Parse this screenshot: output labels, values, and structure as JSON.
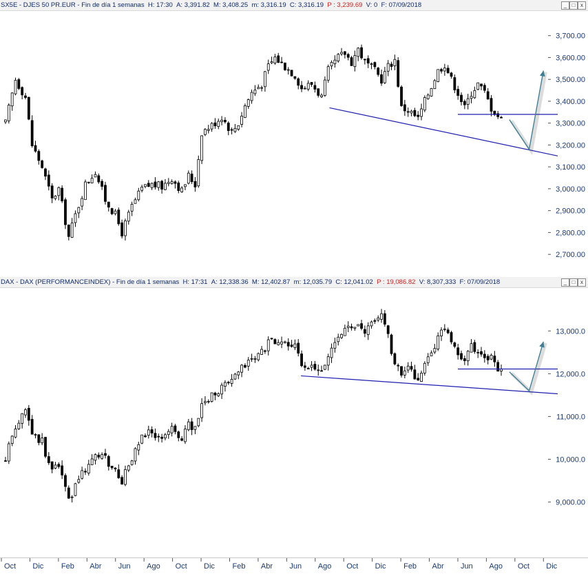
{
  "panels": [
    {
      "header": {
        "symbol": "SX5E",
        "name": "DJES 50 PR.EUR",
        "period": "Fin de día 1 semanas",
        "time_label": "H:",
        "time": "17:30",
        "open_label": "A:",
        "open": "3,391.82",
        "high_label": "M:",
        "high": "3,408.25",
        "low_label": "m:",
        "low": "3,316.19",
        "close_label": "C:",
        "close": "3,316.19",
        "p_label": "P :",
        "p": "3,239.69",
        "vol_label": "V:",
        "vol": "0",
        "date_label": "F:",
        "date": "07/09/2018"
      }
    },
    {
      "header": {
        "symbol": "DAX",
        "name": "DAX (PERFORMANCEINDEX)",
        "period": "Fin de día 1 semanas",
        "time_label": "H:",
        "time": "17:31",
        "open_label": "A:",
        "open": "12,338.36",
        "high_label": "M:",
        "high": "12,402.87",
        "low_label": "m:",
        "low": "12,035.79",
        "close_label": "C:",
        "close": "12,041.02",
        "p_label": "P :",
        "p": "19,086.82",
        "vol_label": "V:",
        "vol": "8,307,333",
        "date_label": "F:",
        "date": "07/09/2018"
      }
    }
  ],
  "window_buttons": [
    "_",
    "□",
    "x"
  ],
  "colors": {
    "header_text": "#102a6b",
    "header_red": "#d21e1e",
    "trendline": "#1f1fb0",
    "projection": "#3e7f93",
    "candle": "#000000"
  },
  "chart_data": [
    {
      "type": "candlestick",
      "title": "SX5E - DJES 50 PR.EUR",
      "x_ticks": [
        "Oct",
        "Dic",
        "Feb",
        "Abr",
        "Jun",
        "Ago",
        "Oct",
        "Dic",
        "Feb",
        "Abr",
        "Jun",
        "Ago",
        "Oct",
        "Dic",
        "Feb",
        "Abr",
        "Jun",
        "Ago",
        "Oct",
        "Dic"
      ],
      "x_range": [
        "2015-09",
        "2018-12"
      ],
      "y_ticks": [
        "2,700.00",
        "2,800.00",
        "2,900.00",
        "3,000.00",
        "3,100.00",
        "3,200.00",
        "3,300.00",
        "3,400.00",
        "3,500.00",
        "3,600.00",
        "3,700.00"
      ],
      "ylim": [
        2650,
        3740
      ],
      "close_anchors": [
        [
          0,
          3300
        ],
        [
          3,
          3500
        ],
        [
          6,
          3420
        ],
        [
          8,
          3200
        ],
        [
          11,
          3100
        ],
        [
          14,
          2950
        ],
        [
          16,
          3000
        ],
        [
          19,
          2780
        ],
        [
          21,
          2880
        ],
        [
          24,
          3020
        ],
        [
          27,
          3080
        ],
        [
          30,
          2950
        ],
        [
          33,
          2880
        ],
        [
          35,
          2800
        ],
        [
          38,
          2920
        ],
        [
          41,
          3000
        ],
        [
          44,
          3020
        ],
        [
          47,
          3010
        ],
        [
          50,
          3050
        ],
        [
          53,
          2990
        ],
        [
          55,
          3060
        ],
        [
          57,
          3020
        ],
        [
          59,
          3260
        ],
        [
          62,
          3290
        ],
        [
          65,
          3330
        ],
        [
          68,
          3260
        ],
        [
          70,
          3300
        ],
        [
          72,
          3380
        ],
        [
          74,
          3440
        ],
        [
          77,
          3480
        ],
        [
          79,
          3560
        ],
        [
          81,
          3600
        ],
        [
          84,
          3560
        ],
        [
          87,
          3520
        ],
        [
          89,
          3460
        ],
        [
          92,
          3480
        ],
        [
          95,
          3420
        ],
        [
          97,
          3540
        ],
        [
          100,
          3600
        ],
        [
          102,
          3620
        ],
        [
          104,
          3580
        ],
        [
          106,
          3640
        ],
        [
          108,
          3580
        ],
        [
          111,
          3540
        ],
        [
          113,
          3500
        ],
        [
          115,
          3560
        ],
        [
          117,
          3590
        ],
        [
          119,
          3370
        ],
        [
          121,
          3360
        ],
        [
          124,
          3320
        ],
        [
          126,
          3400
        ],
        [
          128,
          3470
        ],
        [
          130,
          3540
        ],
        [
          132,
          3570
        ],
        [
          134,
          3500
        ],
        [
          136,
          3440
        ],
        [
          138,
          3370
        ],
        [
          140,
          3440
        ],
        [
          142,
          3480
        ],
        [
          144,
          3440
        ],
        [
          146,
          3370
        ],
        [
          149,
          3316
        ]
      ],
      "trendline": {
        "from": [
          "2017-08",
          3370
        ],
        "to": [
          "2018-12",
          3150
        ]
      },
      "support_line": {
        "value": 3340,
        "from": "2018-05",
        "to": "2018-12"
      },
      "projection": [
        [
          "2018-09",
          3316
        ],
        [
          "2018-10",
          3180
        ],
        [
          "2018-11",
          3540
        ]
      ]
    },
    {
      "type": "candlestick",
      "title": "DAX - DAX (PERFORMANCEINDEX)",
      "x_ticks": [
        "Oct",
        "Dic",
        "Feb",
        "Abr",
        "Jun",
        "Ago",
        "Oct",
        "Dic",
        "Feb",
        "Abr",
        "Jun",
        "Ago",
        "Oct",
        "Dic",
        "Feb",
        "Abr",
        "Jun",
        "Ago",
        "Oct",
        "Dic"
      ],
      "x_range": [
        "2015-09",
        "2018-12"
      ],
      "y_ticks": [
        "9,000.00",
        "10,000.0",
        "11,000.0",
        "12,000.0",
        "13,000.0"
      ],
      "ylim": [
        8300,
        14100
      ],
      "close_anchors": [
        [
          0,
          10000
        ],
        [
          3,
          10800
        ],
        [
          6,
          11200
        ],
        [
          8,
          10600
        ],
        [
          11,
          10400
        ],
        [
          14,
          9700
        ],
        [
          16,
          9900
        ],
        [
          19,
          9000
        ],
        [
          21,
          9400
        ],
        [
          24,
          9800
        ],
        [
          27,
          10100
        ],
        [
          30,
          10000
        ],
        [
          33,
          9700
        ],
        [
          35,
          9500
        ],
        [
          38,
          10000
        ],
        [
          41,
          10500
        ],
        [
          44,
          10650
        ],
        [
          47,
          10500
        ],
        [
          50,
          10700
        ],
        [
          53,
          10500
        ],
        [
          55,
          10800
        ],
        [
          57,
          10700
        ],
        [
          59,
          11300
        ],
        [
          62,
          11500
        ],
        [
          65,
          11700
        ],
        [
          68,
          11800
        ],
        [
          70,
          12000
        ],
        [
          72,
          12200
        ],
        [
          74,
          12300
        ],
        [
          77,
          12500
        ],
        [
          79,
          12700
        ],
        [
          81,
          12800
        ],
        [
          84,
          12700
        ],
        [
          87,
          12600
        ],
        [
          89,
          12200
        ],
        [
          92,
          12100
        ],
        [
          95,
          12000
        ],
        [
          97,
          12400
        ],
        [
          100,
          12900
        ],
        [
          102,
          13100
        ],
        [
          104,
          13000
        ],
        [
          106,
          13100
        ],
        [
          108,
          13000
        ],
        [
          111,
          13200
        ],
        [
          113,
          13400
        ],
        [
          115,
          12900
        ],
        [
          117,
          12200
        ],
        [
          119,
          12000
        ],
        [
          121,
          12100
        ],
        [
          124,
          11900
        ],
        [
          126,
          12200
        ],
        [
          128,
          12500
        ],
        [
          130,
          12800
        ],
        [
          132,
          13100
        ],
        [
          134,
          12800
        ],
        [
          136,
          12500
        ],
        [
          138,
          12300
        ],
        [
          140,
          12700
        ],
        [
          142,
          12500
        ],
        [
          144,
          12300
        ],
        [
          146,
          12400
        ],
        [
          149,
          12041
        ]
      ],
      "trendline": {
        "from": [
          "2017-06",
          11950
        ],
        "to": [
          "2018-12",
          11530
        ]
      },
      "support_line": {
        "value": 12110,
        "from": "2018-05",
        "to": "2018-12"
      },
      "projection": [
        [
          "2018-09",
          12041
        ],
        [
          "2018-10",
          11600
        ],
        [
          "2018-11",
          12750
        ]
      ]
    }
  ]
}
